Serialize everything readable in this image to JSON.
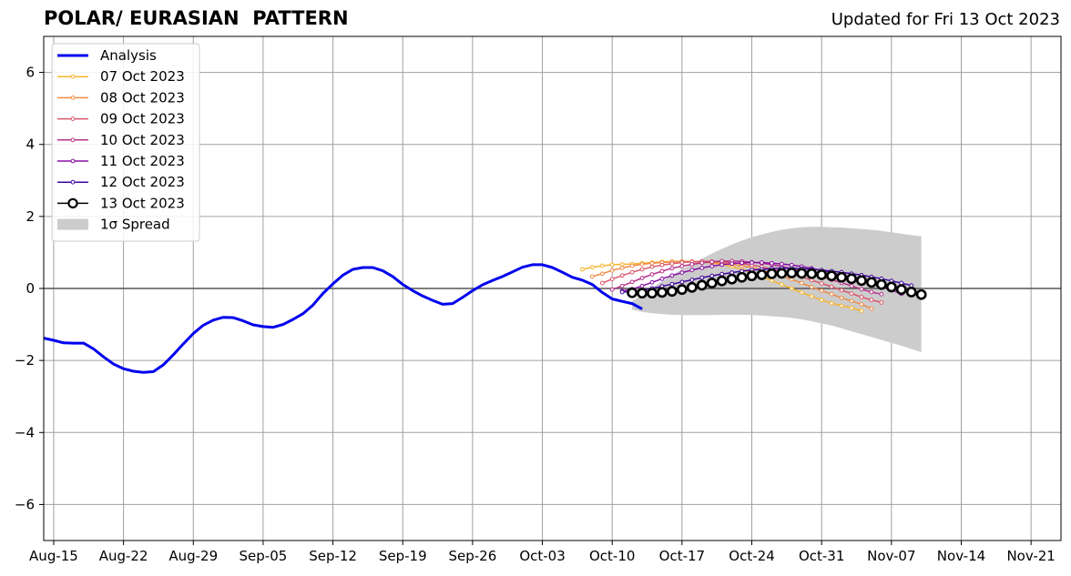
{
  "chart_data": {
    "type": "line",
    "title": "POLAR/ EURASIAN  PATTERN",
    "subtitle": "Updated for Fri 13 Oct 2023",
    "xlabel": "",
    "ylabel": "",
    "x_start": "2023-08-14",
    "xlim_days": [
      0,
      102
    ],
    "ylim": [
      -7,
      7
    ],
    "y_ticks": [
      -6,
      -4,
      -2,
      0,
      2,
      4,
      6
    ],
    "y_tick_labels": [
      "−6",
      "−4",
      "−2",
      "0",
      "2",
      "4",
      "6"
    ],
    "x_ticks": [
      {
        "day": 1,
        "label": "Aug-15"
      },
      {
        "day": 8,
        "label": "Aug-22"
      },
      {
        "day": 15,
        "label": "Aug-29"
      },
      {
        "day": 22,
        "label": "Sep-05"
      },
      {
        "day": 29,
        "label": "Sep-12"
      },
      {
        "day": 36,
        "label": "Sep-19"
      },
      {
        "day": 43,
        "label": "Sep-26"
      },
      {
        "day": 50,
        "label": "Oct-03"
      },
      {
        "day": 57,
        "label": "Oct-10"
      },
      {
        "day": 64,
        "label": "Oct-17"
      },
      {
        "day": 71,
        "label": "Oct-24"
      },
      {
        "day": 78,
        "label": "Oct-31"
      },
      {
        "day": 85,
        "label": "Nov-07"
      },
      {
        "day": 92,
        "label": "Nov-14"
      },
      {
        "day": 99,
        "label": "Nov-21"
      }
    ],
    "grid": true,
    "legend": "top-left",
    "analysis": {
      "name": "Analysis",
      "color": "#0000ee",
      "start_day": 0,
      "values": [
        -1.38,
        -1.44,
        -1.51,
        -1.52,
        -1.52,
        -1.68,
        -1.9,
        -2.1,
        -2.23,
        -2.3,
        -2.33,
        -2.31,
        -2.12,
        -1.84,
        -1.54,
        -1.25,
        -1.02,
        -0.88,
        -0.8,
        -0.81,
        -0.9,
        -1.01,
        -1.06,
        -1.08,
        -1.0,
        -0.86,
        -0.7,
        -0.46,
        -0.14,
        0.13,
        0.37,
        0.53,
        0.58,
        0.58,
        0.49,
        0.33,
        0.11,
        -0.06,
        -0.21,
        -0.33,
        -0.44,
        -0.42,
        -0.25,
        -0.06,
        0.1,
        0.22,
        0.33,
        0.46,
        0.59,
        0.66,
        0.66,
        0.58,
        0.45,
        0.31,
        0.23,
        0.11,
        -0.11,
        -0.29,
        -0.36,
        -0.42,
        -0.57
      ]
    },
    "forecasts": [
      {
        "name": "07 Oct 2023",
        "color": "#f7b42e",
        "start_day": 54,
        "values": [
          0.53,
          0.59,
          0.63,
          0.66,
          0.67,
          0.68,
          0.7,
          0.72,
          0.74,
          0.75,
          0.75,
          0.74,
          0.73,
          0.71,
          0.67,
          0.61,
          0.53,
          0.43,
          0.33,
          0.22,
          0.11,
          0.0,
          -0.11,
          -0.22,
          -0.32,
          -0.41,
          -0.48,
          -0.54,
          -0.62
        ]
      },
      {
        "name": "08 Oct 2023",
        "color": "#f08a47",
        "start_day": 55,
        "values": [
          0.33,
          0.41,
          0.5,
          0.57,
          0.63,
          0.67,
          0.7,
          0.72,
          0.74,
          0.75,
          0.75,
          0.74,
          0.72,
          0.7,
          0.67,
          0.63,
          0.58,
          0.51,
          0.43,
          0.34,
          0.25,
          0.15,
          0.04,
          -0.06,
          -0.16,
          -0.26,
          -0.35,
          -0.44,
          -0.56
        ]
      },
      {
        "name": "09 Oct 2023",
        "color": "#d9576b",
        "start_day": 56,
        "values": [
          0.15,
          0.26,
          0.36,
          0.45,
          0.53,
          0.6,
          0.65,
          0.69,
          0.72,
          0.74,
          0.75,
          0.75,
          0.74,
          0.72,
          0.69,
          0.65,
          0.6,
          0.54,
          0.47,
          0.4,
          0.32,
          0.23,
          0.14,
          0.05,
          -0.05,
          -0.14,
          -0.24,
          -0.32,
          -0.39
        ]
      },
      {
        "name": "10 Oct 2023",
        "color": "#b83289",
        "start_day": 57,
        "values": [
          -0.03,
          0.07,
          0.18,
          0.29,
          0.39,
          0.48,
          0.56,
          0.62,
          0.67,
          0.71,
          0.74,
          0.76,
          0.76,
          0.75,
          0.73,
          0.7,
          0.66,
          0.61,
          0.55,
          0.48,
          0.41,
          0.33,
          0.24,
          0.16,
          0.07,
          -0.02,
          -0.1,
          -0.16
        ]
      },
      {
        "name": "11 Oct 2023",
        "color": "#8a0fa5",
        "start_day": 58,
        "values": [
          -0.07,
          -0.02,
          0.07,
          0.17,
          0.27,
          0.36,
          0.44,
          0.51,
          0.57,
          0.62,
          0.66,
          0.69,
          0.71,
          0.72,
          0.72,
          0.7,
          0.68,
          0.65,
          0.61,
          0.56,
          0.5,
          0.44,
          0.37,
          0.29,
          0.21,
          0.13,
          0.05,
          -0.04,
          -0.15
        ]
      },
      {
        "name": "12 Oct 2023",
        "color": "#3e049c",
        "start_day": 58,
        "values": [
          -0.1,
          -0.08,
          -0.05,
          0.0,
          0.06,
          0.12,
          0.18,
          0.24,
          0.3,
          0.35,
          0.4,
          0.44,
          0.48,
          0.51,
          0.53,
          0.55,
          0.56,
          0.56,
          0.55,
          0.53,
          0.51,
          0.48,
          0.45,
          0.41,
          0.37,
          0.32,
          0.27,
          0.21,
          0.15,
          0.08
        ]
      }
    ],
    "latest_forecast": {
      "name": "13 Oct 2023",
      "color": "#000000",
      "start_day": 59,
      "values": [
        -0.12,
        -0.13,
        -0.13,
        -0.11,
        -0.08,
        -0.03,
        0.03,
        0.09,
        0.15,
        0.21,
        0.26,
        0.31,
        0.35,
        0.38,
        0.41,
        0.42,
        0.43,
        0.42,
        0.41,
        0.38,
        0.35,
        0.31,
        0.27,
        0.22,
        0.17,
        0.11,
        0.04,
        -0.03,
        -0.1,
        -0.17
      ]
    },
    "spread": {
      "name": "1σ Spread",
      "color": "#cccccc",
      "start_day": 59,
      "upper": [
        -0.35,
        -0.18,
        0.02,
        0.2,
        0.37,
        0.53,
        0.68,
        0.83,
        0.97,
        1.1,
        1.22,
        1.33,
        1.42,
        1.5,
        1.57,
        1.63,
        1.67,
        1.7,
        1.71,
        1.71,
        1.7,
        1.69,
        1.67,
        1.65,
        1.63,
        1.6,
        1.56,
        1.52,
        1.48,
        1.45
      ],
      "lower": [
        -0.59,
        -0.65,
        -0.69,
        -0.71,
        -0.73,
        -0.74,
        -0.74,
        -0.74,
        -0.74,
        -0.73,
        -0.73,
        -0.73,
        -0.74,
        -0.75,
        -0.77,
        -0.79,
        -0.82,
        -0.86,
        -0.91,
        -0.97,
        -1.03,
        -1.11,
        -1.19,
        -1.27,
        -1.35,
        -1.43,
        -1.51,
        -1.59,
        -1.68,
        -1.77
      ]
    }
  }
}
